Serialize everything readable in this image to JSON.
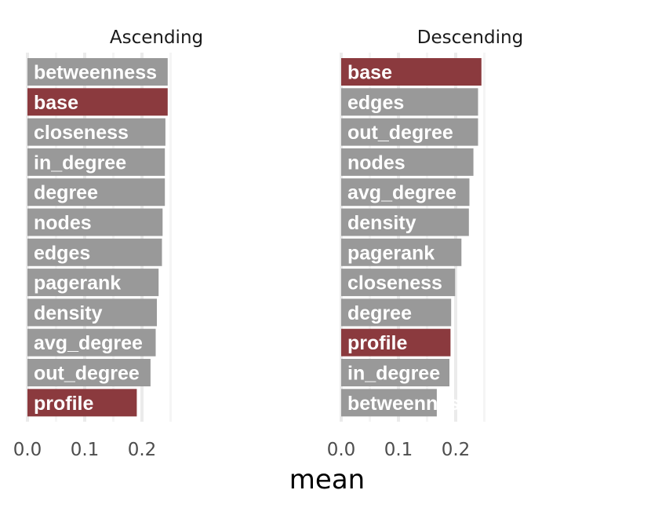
{
  "colors": {
    "highlight": "#8b3a3e",
    "default": "#999999",
    "grid_major": "#ebebeb",
    "grid_minor": "#f5f5f5",
    "background": "#ffffff"
  },
  "chart_data": {
    "type": "bar",
    "orientation": "horizontal",
    "xlabel": "mean",
    "xlim": [
      0,
      0.25
    ],
    "x_ticks": [
      "0.0",
      "0.1",
      "0.2"
    ],
    "grid": true,
    "highlighted_categories": [
      "base",
      "profile"
    ],
    "panels": [
      {
        "title": "Ascending",
        "categories": [
          "betweenness",
          "base",
          "closeness",
          "in_degree",
          "degree",
          "nodes",
          "edges",
          "pagerank",
          "density",
          "avg_degree",
          "out_degree",
          "profile"
        ],
        "values": [
          0.245,
          0.245,
          0.241,
          0.24,
          0.24,
          0.236,
          0.235,
          0.229,
          0.226,
          0.224,
          0.215,
          0.191
        ]
      },
      {
        "title": "Descending",
        "categories": [
          "base",
          "edges",
          "out_degree",
          "nodes",
          "avg_degree",
          "density",
          "pagerank",
          "closeness",
          "degree",
          "profile",
          "in_degree",
          "betweenness"
        ],
        "values": [
          0.245,
          0.239,
          0.239,
          0.231,
          0.224,
          0.223,
          0.21,
          0.199,
          0.192,
          0.191,
          0.189,
          0.167
        ]
      }
    ]
  }
}
